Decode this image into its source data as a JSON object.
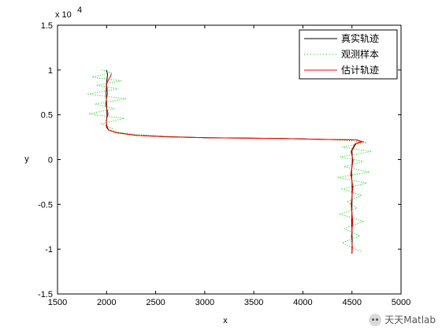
{
  "chart_data": {
    "type": "line",
    "title": "",
    "xlabel": "x",
    "ylabel": "y",
    "xlim": [
      1500,
      5000
    ],
    "ylim": [
      -15000,
      15000
    ],
    "y_exponent_label": "x 10",
    "y_exponent_power": "4",
    "x_ticks": [
      "1500",
      "2000",
      "2500",
      "3000",
      "3500",
      "4000",
      "4500",
      "5000"
    ],
    "y_ticks": [
      "-1.5",
      "-1",
      "-0.5",
      "0",
      "0.5",
      "1",
      "1.5"
    ],
    "x_tick_values": [
      1500,
      2000,
      2500,
      3000,
      3500,
      4000,
      4500,
      5000
    ],
    "y_tick_values": [
      -15000,
      -10000,
      -5000,
      0,
      5000,
      10000,
      15000
    ],
    "legend_position": "top-right",
    "series": [
      {
        "name": "真实轨迹",
        "color": "#000000",
        "style": "solid",
        "x": [
          2000,
          2010,
          2000,
          1995,
          2000,
          2005,
          1998,
          2000,
          2020,
          2100,
          2300,
          2600,
          3000,
          3400,
          3800,
          4200,
          4550,
          4600,
          4540,
          4500,
          4505,
          4495,
          4502,
          4500,
          4498,
          4502,
          4500
        ],
        "y": [
          10000,
          9500,
          8500,
          7500,
          6000,
          5000,
          4200,
          3600,
          3300,
          3000,
          2700,
          2550,
          2450,
          2400,
          2350,
          2250,
          2200,
          2000,
          1800,
          1000,
          0,
          -1500,
          -3000,
          -5000,
          -7000,
          -9000,
          -10500
        ]
      },
      {
        "name": "观测样本",
        "color": "#00cc00",
        "style": "dotted",
        "x": [
          1950,
          2050,
          1850,
          2150,
          1900,
          2120,
          1800,
          2200,
          1880,
          2080,
          1820,
          2180,
          1950,
          2050,
          2100,
          2300,
          2600,
          3000,
          3400,
          3800,
          4200,
          4450,
          4650,
          4400,
          4700,
          4380,
          4620,
          4420,
          4680,
          4350,
          4650,
          4400,
          4600,
          4450,
          4550,
          4380,
          4620,
          4420,
          4580,
          4400,
          4600
        ],
        "y": [
          10000,
          9700,
          9200,
          8800,
          8300,
          7900,
          7300,
          6800,
          6200,
          5700,
          5100,
          4600,
          4000,
          3500,
          3100,
          2800,
          2600,
          2450,
          2400,
          2350,
          2250,
          2150,
          1900,
          1400,
          900,
          300,
          -200,
          -800,
          -1400,
          -2000,
          -2600,
          -3300,
          -4000,
          -4700,
          -5400,
          -6100,
          -6900,
          -7700,
          -8500,
          -9300,
          -10300
        ]
      },
      {
        "name": "估计轨迹",
        "color": "#ff0000",
        "style": "solid",
        "x": [
          2050,
          2040,
          2000,
          2010,
          1990,
          2015,
          1995,
          2005,
          2020,
          2100,
          2300,
          2600,
          3000,
          3400,
          3800,
          4200,
          4540,
          4610,
          4530,
          4490,
          4512,
          4488,
          4510,
          4492,
          4508,
          4495,
          4505,
          4500
        ],
        "y": [
          9600,
          9300,
          8500,
          7400,
          6200,
          5100,
          4300,
          3700,
          3300,
          3000,
          2700,
          2550,
          2450,
          2400,
          2350,
          2250,
          2200,
          2000,
          1750,
          900,
          -100,
          -1600,
          -3100,
          -5000,
          -6900,
          -8600,
          -9800,
          -10500
        ]
      }
    ]
  },
  "watermark": {
    "text": "天天Matlab",
    "icon": "wechat-icon"
  }
}
